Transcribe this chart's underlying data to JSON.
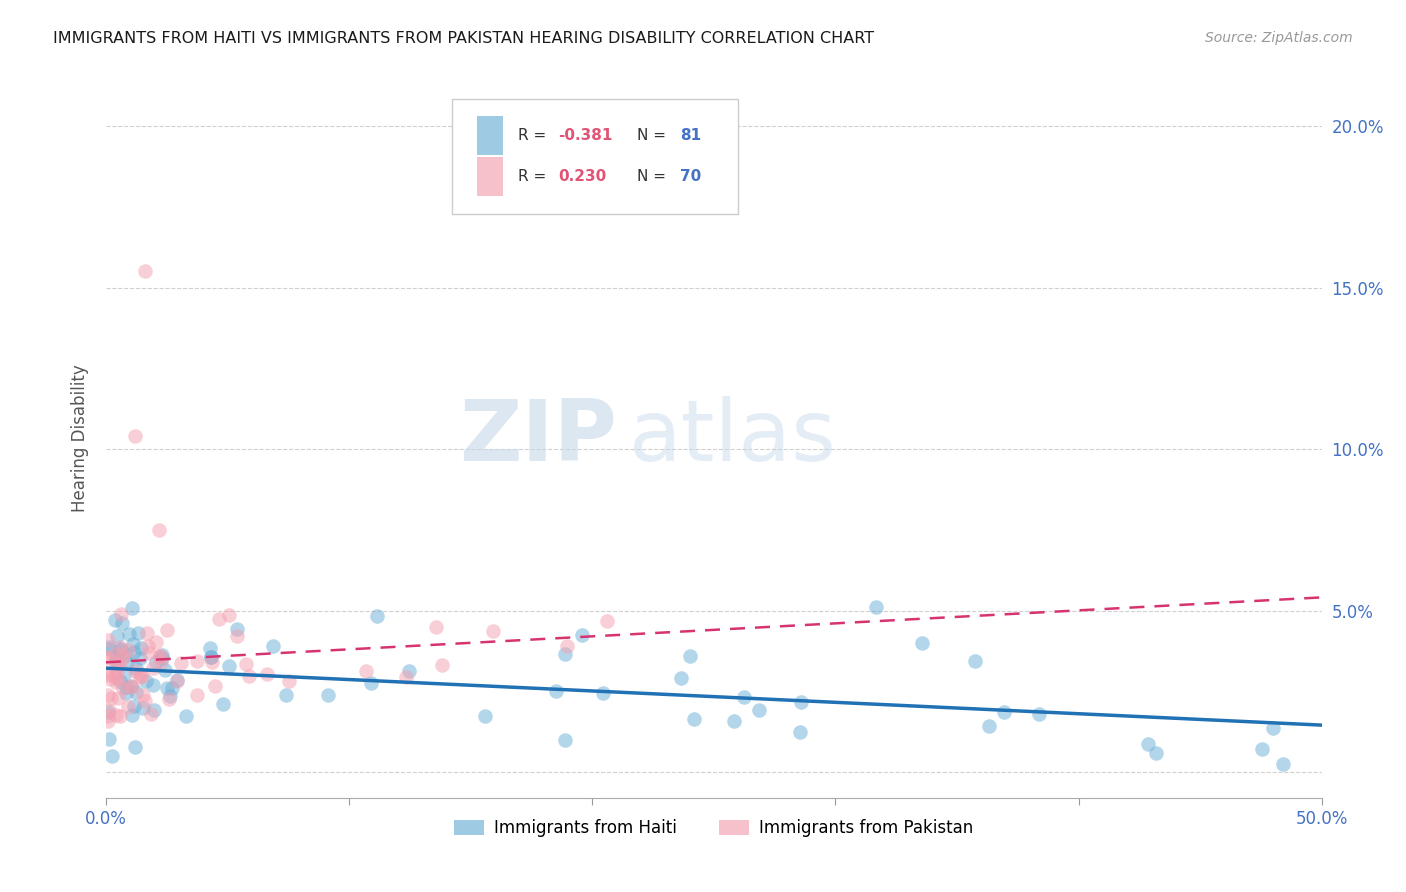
{
  "title": "IMMIGRANTS FROM HAITI VS IMMIGRANTS FROM PAKISTAN HEARING DISABILITY CORRELATION CHART",
  "source": "Source: ZipAtlas.com",
  "ylabel": "Hearing Disability",
  "xmin": 0.0,
  "xmax": 0.5,
  "ymin": -0.008,
  "ymax": 0.215,
  "haiti_color": "#6baed6",
  "pakistan_color": "#f4a0b0",
  "haiti_trend_color": "#2171b5",
  "pakistan_trend_color": "#d63370",
  "haiti_R": -0.381,
  "haiti_N": 81,
  "pakistan_R": 0.23,
  "pakistan_N": 70,
  "background_color": "#ffffff",
  "grid_color": "#d0d0d0",
  "title_color": "#1a1a1a",
  "axis_label_color": "#4472c4",
  "watermark_zip_color": "#c5d8ea",
  "watermark_atlas_color": "#c5d8ea",
  "legend_R_color": "#333333",
  "legend_N_color": "#4472c4"
}
